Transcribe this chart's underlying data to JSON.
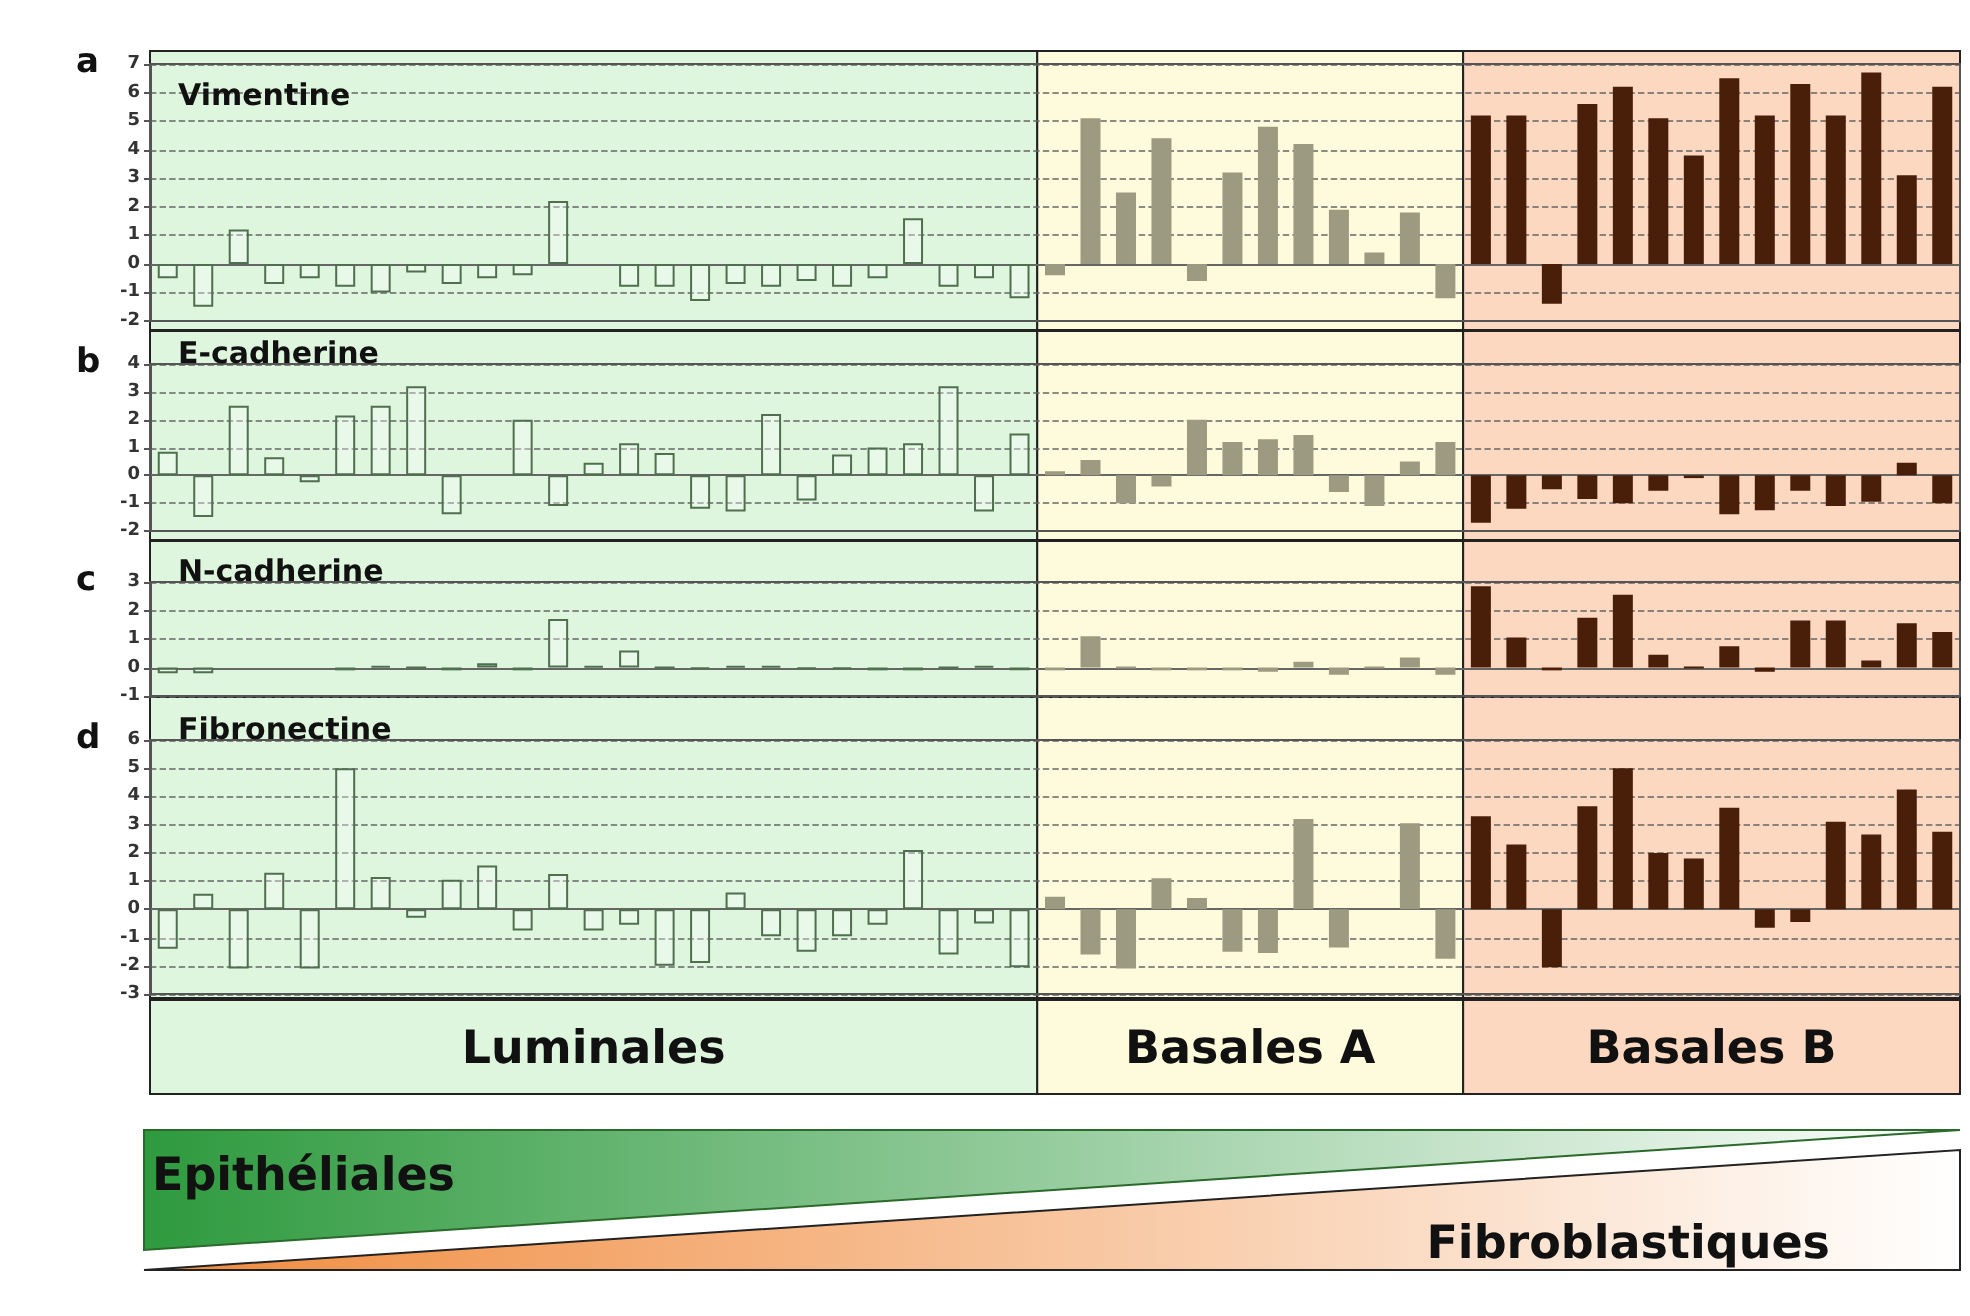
{
  "chart_data": [
    {
      "type": "bar",
      "title": "Vimentine",
      "annotations": [
        "a"
      ],
      "categories": [
        null,
        null,
        null,
        null,
        null,
        null,
        null,
        null,
        null,
        null,
        null,
        null,
        null,
        null,
        null,
        null,
        null,
        null,
        null,
        null,
        null,
        null,
        null,
        null,
        null,
        null,
        null,
        null,
        null,
        null,
        null,
        null,
        null,
        null,
        null,
        null,
        null,
        null,
        null,
        null,
        null,
        null,
        null,
        null,
        null,
        null,
        null,
        null,
        null,
        null,
        null
      ],
      "ylim": [
        -2,
        7
      ],
      "yticks": [
        -2,
        -1,
        0,
        1,
        2,
        3,
        4,
        5,
        6,
        7
      ],
      "tick_labels": "y",
      "grid": "y",
      "series": [
        {
          "color": "#4f6f4f",
          "values": [
            -0.5,
            -1.5,
            1.2,
            -0.7,
            -0.5,
            -0.8,
            -1.0,
            -0.3,
            -0.7,
            -0.5,
            -0.4,
            2.2,
            null,
            -0.8,
            -0.8,
            -1.3,
            -0.7,
            -0.8,
            -0.6,
            -0.8,
            -0.5,
            1.6,
            -0.8,
            -0.5,
            -1.2,
            null,
            null,
            null,
            null,
            null,
            null,
            null,
            null,
            null,
            null,
            null,
            null,
            null,
            null,
            null,
            null,
            null,
            null,
            null,
            null,
            null,
            null,
            null,
            null,
            null,
            null
          ]
        },
        {
          "color": "#9c9a80",
          "values": [
            null,
            null,
            null,
            null,
            null,
            null,
            null,
            null,
            null,
            null,
            null,
            null,
            null,
            null,
            null,
            null,
            null,
            null,
            null,
            null,
            null,
            null,
            null,
            null,
            null,
            -0.4,
            5.1,
            2.5,
            4.4,
            -0.6,
            3.2,
            4.8,
            4.2,
            1.9,
            0.4,
            1.8,
            -1.2,
            null,
            null,
            null,
            null,
            null,
            null,
            null,
            null,
            null,
            null,
            null,
            null,
            null,
            null
          ]
        },
        {
          "color": "#4a1f0a",
          "values": [
            null,
            null,
            null,
            null,
            null,
            null,
            null,
            null,
            null,
            null,
            null,
            null,
            null,
            null,
            null,
            null,
            null,
            null,
            null,
            null,
            null,
            null,
            null,
            null,
            null,
            null,
            null,
            null,
            null,
            null,
            null,
            null,
            null,
            null,
            null,
            null,
            null,
            5.2,
            5.2,
            -1.4,
            5.6,
            6.2,
            5.1,
            3.8,
            6.5,
            5.2,
            6.3,
            5.2,
            6.7,
            3.1,
            6.2
          ]
        }
      ]
    },
    {
      "type": "bar",
      "title": "E-cadherine",
      "annotations": [
        "b"
      ],
      "categories": [
        null,
        null,
        null,
        null,
        null,
        null,
        null,
        null,
        null,
        null,
        null,
        null,
        null,
        null,
        null,
        null,
        null,
        null,
        null,
        null,
        null,
        null,
        null,
        null,
        null,
        null,
        null,
        null,
        null,
        null,
        null,
        null,
        null,
        null,
        null,
        null,
        null,
        null,
        null,
        null,
        null,
        null,
        null,
        null,
        null,
        null,
        null,
        null,
        null,
        null,
        null
      ],
      "ylim": [
        -2,
        4
      ],
      "yticks": [
        -2,
        -1,
        0,
        1,
        2,
        3,
        4
      ],
      "tick_labels": "y",
      "grid": "y",
      "series": [
        {
          "color": "#4f6f4f",
          "values": [
            0.85,
            -1.5,
            2.5,
            0.65,
            -0.25,
            2.15,
            2.5,
            3.2,
            -1.4,
            null,
            2.0,
            -1.1,
            0.45,
            1.15,
            0.8,
            -1.2,
            -1.3,
            2.2,
            -0.9,
            0.75,
            1.0,
            1.15,
            3.2,
            -1.3,
            1.5,
            null,
            null,
            null,
            null,
            null,
            null,
            null,
            null,
            null,
            null,
            null,
            null,
            null,
            null,
            null,
            null,
            null,
            null,
            null,
            null,
            null,
            null,
            null,
            null,
            null,
            null
          ]
        },
        {
          "color": "#9c9a80",
          "values": [
            null,
            null,
            null,
            null,
            null,
            null,
            null,
            null,
            null,
            null,
            null,
            null,
            null,
            null,
            null,
            null,
            null,
            null,
            null,
            null,
            null,
            null,
            null,
            null,
            null,
            0.15,
            0.55,
            -1.0,
            -0.4,
            2.0,
            1.2,
            1.3,
            1.45,
            -0.6,
            -1.1,
            0.5,
            1.2,
            null,
            null,
            null,
            null,
            null,
            null,
            null,
            null,
            null,
            null,
            null,
            null,
            null,
            null
          ]
        },
        {
          "color": "#4a1f0a",
          "values": [
            null,
            null,
            null,
            null,
            null,
            null,
            null,
            null,
            null,
            null,
            null,
            null,
            null,
            null,
            null,
            null,
            null,
            null,
            null,
            null,
            null,
            null,
            null,
            null,
            null,
            null,
            null,
            null,
            null,
            null,
            null,
            null,
            null,
            null,
            null,
            null,
            null,
            -1.7,
            -1.2,
            -0.5,
            -0.85,
            -1.0,
            -0.55,
            -0.1,
            -1.4,
            -1.25,
            -0.55,
            -1.1,
            -0.95,
            0.45,
            -1.0
          ]
        }
      ]
    },
    {
      "type": "bar",
      "title": "N-cadherine",
      "annotations": [
        "c"
      ],
      "categories": [
        null,
        null,
        null,
        null,
        null,
        null,
        null,
        null,
        null,
        null,
        null,
        null,
        null,
        null,
        null,
        null,
        null,
        null,
        null,
        null,
        null,
        null,
        null,
        null,
        null,
        null,
        null,
        null,
        null,
        null,
        null,
        null,
        null,
        null,
        null,
        null,
        null,
        null,
        null,
        null,
        null,
        null,
        null,
        null,
        null,
        null,
        null,
        null,
        null,
        null,
        null
      ],
      "ylim": [
        -1,
        3
      ],
      "yticks": [
        -1,
        0,
        1,
        2,
        3
      ],
      "tick_labels": "y",
      "grid": "y",
      "series": [
        {
          "color": "#4f6f4f",
          "values": [
            -0.2,
            -0.2,
            null,
            null,
            null,
            -0.1,
            0.05,
            0,
            -0.1,
            0.15,
            -0.1,
            1.7,
            0.05,
            0.6,
            0,
            -0.05,
            0.05,
            0.05,
            -0.05,
            -0.05,
            -0.1,
            -0.1,
            0,
            0.05,
            -0.1,
            null,
            null,
            null,
            null,
            null,
            null,
            null,
            null,
            null,
            null,
            null,
            null,
            null,
            null,
            null,
            null,
            null,
            null,
            null,
            null,
            null,
            null,
            null,
            null,
            null,
            null
          ]
        },
        {
          "color": "#9c9a80",
          "values": [
            null,
            null,
            null,
            null,
            null,
            null,
            null,
            null,
            null,
            null,
            null,
            null,
            null,
            null,
            null,
            null,
            null,
            null,
            null,
            null,
            null,
            null,
            null,
            null,
            null,
            -0.1,
            1.1,
            0,
            -0.1,
            -0.1,
            -0.1,
            -0.15,
            0.2,
            -0.25,
            0,
            0.35,
            -0.25,
            null,
            null,
            null,
            null,
            null,
            null,
            null,
            null,
            null,
            null,
            null,
            null,
            null,
            null
          ]
        },
        {
          "color": "#4a1f0a",
          "values": [
            null,
            null,
            null,
            null,
            null,
            null,
            null,
            null,
            null,
            null,
            null,
            null,
            null,
            null,
            null,
            null,
            null,
            null,
            null,
            null,
            null,
            null,
            null,
            null,
            null,
            null,
            null,
            null,
            null,
            null,
            null,
            null,
            null,
            null,
            null,
            null,
            null,
            2.85,
            1.05,
            -0.1,
            1.75,
            2.55,
            0.45,
            0,
            0.75,
            -0.15,
            1.65,
            1.65,
            0.25,
            1.55,
            1.25
          ]
        }
      ]
    },
    {
      "type": "bar",
      "title": "Fibronectine",
      "annotations": [
        "d",
        "Luminales",
        "Basales A",
        "Basales B",
        "Epithéliales",
        "Fibroblastiques"
      ],
      "categories": [
        null,
        null,
        null,
        null,
        null,
        null,
        null,
        null,
        null,
        null,
        null,
        null,
        null,
        null,
        null,
        null,
        null,
        null,
        null,
        null,
        null,
        null,
        null,
        null,
        null,
        null,
        null,
        null,
        null,
        null,
        null,
        null,
        null,
        null,
        null,
        null,
        null,
        null,
        null,
        null,
        null,
        null,
        null,
        null,
        null,
        null,
        null,
        null,
        null,
        null,
        null
      ],
      "ylim": [
        -3,
        6
      ],
      "yticks": [
        -3,
        -2,
        -1,
        0,
        1,
        2,
        3,
        4,
        5,
        6
      ],
      "tick_labels": "y",
      "grid": "y",
      "series": [
        {
          "color": "#4f6f4f",
          "values": [
            -1.4,
            0.55,
            -2.1,
            1.3,
            -2.1,
            5.0,
            1.15,
            -0.3,
            1.05,
            1.55,
            -0.75,
            1.25,
            -0.75,
            -0.55,
            -2.0,
            -1.9,
            0.6,
            -0.95,
            -1.5,
            -0.95,
            -0.55,
            2.1,
            -1.6,
            -0.5,
            -2.05,
            null,
            null,
            null,
            null,
            null,
            null,
            null,
            null,
            null,
            null,
            null,
            null,
            null,
            null,
            null,
            null,
            null,
            null,
            null,
            null,
            null,
            null,
            null,
            null,
            null,
            null
          ]
        },
        {
          "color": "#9c9a80",
          "values": [
            null,
            null,
            null,
            null,
            null,
            null,
            null,
            null,
            null,
            null,
            null,
            null,
            null,
            null,
            null,
            null,
            null,
            null,
            null,
            null,
            null,
            null,
            null,
            null,
            null,
            0.45,
            -1.6,
            -2.1,
            1.1,
            0.4,
            -1.5,
            -1.55,
            3.2,
            -1.35,
            null,
            3.05,
            -1.75,
            null,
            null,
            null,
            null,
            null,
            null,
            null,
            null,
            null,
            null,
            null,
            null,
            null,
            null
          ]
        },
        {
          "color": "#4a1f0a",
          "values": [
            null,
            null,
            null,
            null,
            null,
            null,
            null,
            null,
            null,
            null,
            null,
            null,
            null,
            null,
            null,
            null,
            null,
            null,
            null,
            null,
            null,
            null,
            null,
            null,
            null,
            null,
            null,
            null,
            null,
            null,
            null,
            null,
            null,
            null,
            null,
            null,
            null,
            3.3,
            2.3,
            -2.05,
            3.65,
            5.0,
            2.0,
            1.8,
            3.6,
            -0.65,
            -0.45,
            3.1,
            2.65,
            4.25,
            2.75
          ]
        }
      ]
    }
  ]
}
